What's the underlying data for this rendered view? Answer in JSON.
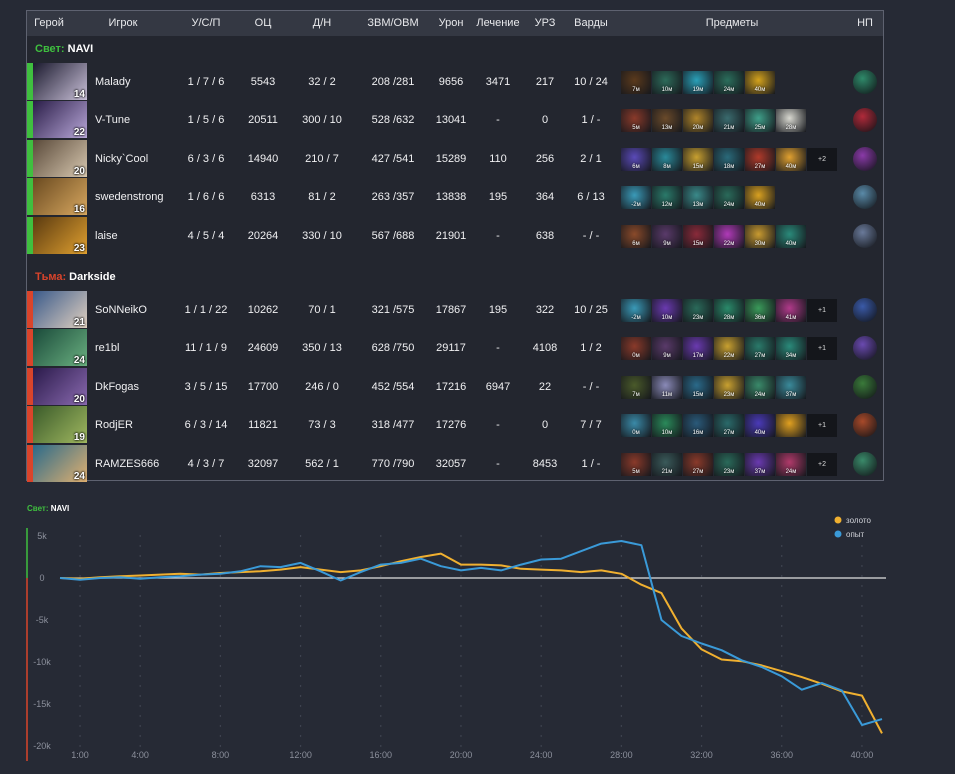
{
  "headers": {
    "hero": "Герой",
    "player": "Игрок",
    "kda": "У/С/П",
    "networth": "ОЦ",
    "lh_dn": "Д/Н",
    "gpm_xpm": "ЗВМ/ОВМ",
    "damage": "Урон",
    "healing": "Лечение",
    "tower_damage": "УРЗ",
    "wards": "Варды",
    "items": "Предметы",
    "neutral": "НП"
  },
  "teams": [
    {
      "side": "Свет:",
      "name": "NAVI",
      "side_color": "#3fbf3f",
      "players": [
        {
          "level": "14",
          "name": "Malady",
          "kda": "1 / 7 / 6",
          "networth": "5543",
          "lh_dn": "32 / 2",
          "gpm_xpm": "208 /281",
          "damage": "9656",
          "healing": "3471",
          "tower_damage": "217",
          "wards": "10 / 24",
          "hero_colors": [
            "#1b1a2e",
            "#c9c0d8"
          ],
          "items": [
            {
              "t": "7м",
              "c": "#5b3a1c"
            },
            {
              "t": "10м",
              "c": "#2d6b5a"
            },
            {
              "t": "19м",
              "c": "#2aa0b8"
            },
            {
              "t": "24м",
              "c": "#2b6e5c"
            },
            {
              "t": "40м",
              "c": "#d4a21c"
            }
          ],
          "extra": "",
          "neutral_color": "#2f8a6a"
        },
        {
          "level": "22",
          "name": "V-Tune",
          "kda": "1 / 5 / 6",
          "networth": "20511",
          "lh_dn": "300 / 10",
          "gpm_xpm": "528 /632",
          "damage": "13041",
          "healing": "-",
          "tower_damage": "0",
          "wards": "1 / -",
          "hero_colors": [
            "#2a1d48",
            "#b9a8d9"
          ],
          "items": [
            {
              "t": "5м",
              "c": "#8a3a2a"
            },
            {
              "t": "13м",
              "c": "#6a4a2a"
            },
            {
              "t": "20м",
              "c": "#b0852a"
            },
            {
              "t": "21м",
              "c": "#3a6b6e"
            },
            {
              "t": "25м",
              "c": "#3fa08a"
            },
            {
              "t": "28м",
              "c": "#d8d8d0"
            }
          ],
          "extra": "",
          "neutral_color": "#b02a3a"
        },
        {
          "level": "20",
          "name": "Nicky`Cool",
          "kda": "6 / 3 / 6",
          "networth": "14940",
          "lh_dn": "210 / 7",
          "gpm_xpm": "427 /541",
          "damage": "15289",
          "healing": "110",
          "tower_damage": "256",
          "wards": "2 / 1",
          "hero_colors": [
            "#5a4a3a",
            "#d8c8b0"
          ],
          "items": [
            {
              "t": "6м",
              "c": "#5a4ab8"
            },
            {
              "t": "8м",
              "c": "#2a8a9a"
            },
            {
              "t": "15м",
              "c": "#c8a030"
            },
            {
              "t": "18м",
              "c": "#2a6a7a"
            },
            {
              "t": "27м",
              "c": "#b03a2a"
            },
            {
              "t": "40м",
              "c": "#e0a030"
            }
          ],
          "extra": "+2",
          "neutral_color": "#8a3aa8"
        },
        {
          "level": "16",
          "name": "swedenstrong",
          "kda": "1 / 6 / 6",
          "networth": "6313",
          "lh_dn": "81 / 2",
          "gpm_xpm": "263 /357",
          "damage": "13838",
          "healing": "195",
          "tower_damage": "364",
          "wards": "6 / 13",
          "hero_colors": [
            "#6a4a20",
            "#d8a860"
          ],
          "items": [
            {
              "t": "-2м",
              "c": "#3a9ab8"
            },
            {
              "t": "12м",
              "c": "#2a7a6a"
            },
            {
              "t": "13м",
              "c": "#3a8a8a"
            },
            {
              "t": "24м",
              "c": "#2a6a5a"
            },
            {
              "t": "40м",
              "c": "#d8a020"
            }
          ],
          "extra": "",
          "neutral_color": "#5a8aa8"
        },
        {
          "level": "23",
          "name": "laise",
          "kda": "4 / 5 / 4",
          "networth": "20264",
          "lh_dn": "330 / 10",
          "gpm_xpm": "567 /688",
          "damage": "21901",
          "healing": "-",
          "tower_damage": "638",
          "wards": "- / -",
          "hero_colors": [
            "#5a3a10",
            "#e0a030"
          ],
          "items": [
            {
              "t": "6м",
              "c": "#8a4a2a"
            },
            {
              "t": "9м",
              "c": "#5a3a6a"
            },
            {
              "t": "15м",
              "c": "#8a2a3a"
            },
            {
              "t": "22м",
              "c": "#b03ab8"
            },
            {
              "t": "30м",
              "c": "#c89a30"
            },
            {
              "t": "40м",
              "c": "#2a8a7a"
            }
          ],
          "extra": "",
          "neutral_color": "#6a7a9a"
        }
      ]
    },
    {
      "side": "Тьма:",
      "name": "Darkside",
      "side_color": "#d9442b",
      "players": [
        {
          "level": "21",
          "name": "SoNNeikO",
          "kda": "1 / 1 / 22",
          "networth": "10262",
          "lh_dn": "70 / 1",
          "gpm_xpm": "321 /575",
          "damage": "17867",
          "healing": "195",
          "tower_damage": "322",
          "wards": "10 / 25",
          "hero_colors": [
            "#3a5a8a",
            "#e0d0c0"
          ],
          "items": [
            {
              "t": "-2м",
              "c": "#3a9ab8"
            },
            {
              "t": "10м",
              "c": "#6a3ab0"
            },
            {
              "t": "23м",
              "c": "#2a6a5a"
            },
            {
              "t": "28м",
              "c": "#2a8a6a"
            },
            {
              "t": "36м",
              "c": "#3a9a5a"
            },
            {
              "t": "41м",
              "c": "#b03a8a"
            }
          ],
          "extra": "+1",
          "neutral_color": "#3a5aa8"
        },
        {
          "level": "24",
          "name": "re1bl",
          "kda": "11 / 1 / 9",
          "networth": "24609",
          "lh_dn": "350 / 13",
          "gpm_xpm": "628 /750",
          "damage": "29117",
          "healing": "-",
          "tower_damage": "4108",
          "wards": "1 / 2",
          "hero_colors": [
            "#1a4a3a",
            "#6ab080"
          ],
          "items": [
            {
              "t": "0м",
              "c": "#8a3a2a"
            },
            {
              "t": "9м",
              "c": "#5a3a6a"
            },
            {
              "t": "17м",
              "c": "#6a3ab0"
            },
            {
              "t": "22м",
              "c": "#c8a030"
            },
            {
              "t": "27м",
              "c": "#2a7a6a"
            },
            {
              "t": "34м",
              "c": "#2a8a7a"
            }
          ],
          "extra": "+1",
          "neutral_color": "#6a4ab0"
        },
        {
          "level": "20",
          "name": "DkFogas",
          "kda": "3 / 5 / 15",
          "networth": "17700",
          "lh_dn": "246 / 0",
          "gpm_xpm": "452 /554",
          "damage": "17216",
          "healing": "6947",
          "tower_damage": "22",
          "wards": "- / -",
          "hero_colors": [
            "#2a1a4a",
            "#8a6ab0"
          ],
          "items": [
            {
              "t": "7м",
              "c": "#4a5a2a"
            },
            {
              "t": "11м",
              "c": "#8a8ab8"
            },
            {
              "t": "15м",
              "c": "#2a6a8a"
            },
            {
              "t": "23м",
              "c": "#c8a030"
            },
            {
              "t": "24м",
              "c": "#3a8a6a"
            },
            {
              "t": "37м",
              "c": "#3a8a9a"
            }
          ],
          "extra": "",
          "neutral_color": "#3a7a3a"
        },
        {
          "level": "19",
          "name": "RodjER",
          "kda": "6 / 3 / 14",
          "networth": "11821",
          "lh_dn": "73 / 3",
          "gpm_xpm": "318 /477",
          "damage": "17276",
          "healing": "-",
          "tower_damage": "0",
          "wards": "7 / 7",
          "hero_colors": [
            "#3a5a2a",
            "#a0b860"
          ],
          "items": [
            {
              "t": "0м",
              "c": "#3a8aa8"
            },
            {
              "t": "10м",
              "c": "#2a8a5a"
            },
            {
              "t": "16м",
              "c": "#2a5a7a"
            },
            {
              "t": "27м",
              "c": "#2a6a6a"
            },
            {
              "t": "40м",
              "c": "#4a3ab8"
            },
            {
              "t": "",
              "c": "#e0a020"
            }
          ],
          "extra": "+1",
          "neutral_color": "#a84a2a"
        },
        {
          "level": "24",
          "name": "RAMZES666",
          "kda": "4 / 3 / 7",
          "networth": "32097",
          "lh_dn": "562 / 1",
          "gpm_xpm": "770 /790",
          "damage": "32057",
          "healing": "-",
          "tower_damage": "8453",
          "wards": "1 / -",
          "hero_colors": [
            "#2a6a8a",
            "#e0b070"
          ],
          "items": [
            {
              "t": "5м",
              "c": "#8a3a2a"
            },
            {
              "t": "21м",
              "c": "#3a5a5a"
            },
            {
              "t": "27м",
              "c": "#8a3a2a"
            },
            {
              "t": "23м",
              "c": "#2a6a5a"
            },
            {
              "t": "37м",
              "c": "#6a3ab0"
            },
            {
              "t": "24м",
              "c": "#b03a6a"
            }
          ],
          "extra": "+2",
          "neutral_color": "#3a8a6a"
        }
      ]
    }
  ],
  "graph": {
    "title_side": "Свет:",
    "title_team": "NAVI",
    "legend": [
      {
        "label": "золото",
        "color": "#f0b030"
      },
      {
        "label": "опыт",
        "color": "#3a9ad8"
      }
    ],
    "radiant_color": "#3fbf3f",
    "dire_color": "#d9442b"
  },
  "chart_data": {
    "type": "line",
    "title": "",
    "xlabel": "",
    "ylabel": "",
    "x_ticks": [
      "1:00",
      "4:00",
      "8:00",
      "12:00",
      "16:00",
      "20:00",
      "24:00",
      "28:00",
      "32:00",
      "36:00",
      "40:00"
    ],
    "x_tick_minutes": [
      1,
      4,
      8,
      12,
      16,
      20,
      24,
      28,
      32,
      36,
      40
    ],
    "y_ticks": [
      "5k",
      "0",
      "-5k",
      "-10k",
      "-15k",
      "-20k"
    ],
    "y_tick_values": [
      5000,
      0,
      -5000,
      -10000,
      -15000,
      -20000
    ],
    "xlim": [
      0,
      41
    ],
    "ylim": [
      -20000,
      5000
    ],
    "grid": true,
    "legend_position": "top-right",
    "series": [
      {
        "name": "золото",
        "color": "#f0b030",
        "x": [
          0,
          1,
          2,
          3,
          4,
          5,
          6,
          7,
          8,
          9,
          10,
          11,
          12,
          13,
          14,
          15,
          16,
          17,
          18,
          19,
          20,
          21,
          22,
          23,
          24,
          25,
          26,
          27,
          28,
          29,
          30,
          31,
          32,
          33,
          34,
          35,
          36,
          37,
          38,
          39,
          40,
          41
        ],
        "values": [
          0,
          -100,
          100,
          200,
          300,
          400,
          500,
          400,
          600,
          700,
          800,
          1000,
          1300,
          1000,
          700,
          900,
          1400,
          2000,
          2500,
          2900,
          1600,
          1600,
          1500,
          1100,
          1000,
          900,
          700,
          900,
          500,
          -800,
          -1800,
          -6000,
          -8500,
          -9700,
          -9900,
          -10400,
          -11100,
          -11800,
          -12600,
          -13500,
          -14000,
          -18500
        ]
      },
      {
        "name": "опыт",
        "color": "#3a9ad8",
        "x": [
          0,
          1,
          2,
          3,
          4,
          5,
          6,
          7,
          8,
          9,
          10,
          11,
          12,
          13,
          14,
          15,
          16,
          17,
          18,
          19,
          20,
          21,
          22,
          23,
          24,
          25,
          26,
          27,
          28,
          29,
          30,
          31,
          32,
          33,
          34,
          35,
          36,
          37,
          38,
          39,
          40,
          41
        ],
        "values": [
          0,
          -200,
          0,
          100,
          -100,
          100,
          200,
          400,
          500,
          800,
          1400,
          1300,
          1800,
          800,
          -300,
          700,
          1600,
          1800,
          2300,
          1400,
          900,
          1200,
          900,
          1600,
          2200,
          2300,
          3200,
          4100,
          4400,
          3900,
          -5000,
          -6900,
          -7800,
          -8600,
          -9800,
          -10600,
          -11700,
          -13300,
          -12500,
          -13400,
          -17500,
          -16800
        ]
      }
    ]
  }
}
